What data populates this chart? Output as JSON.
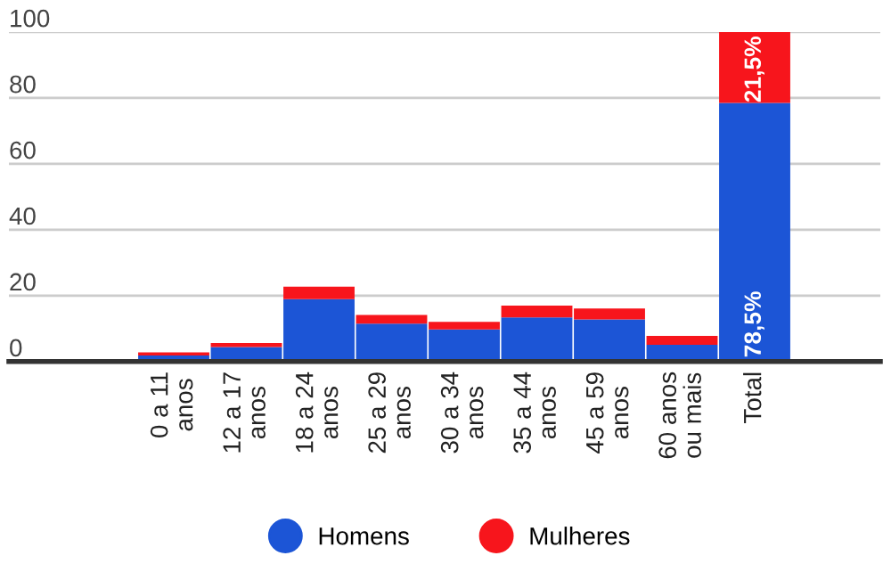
{
  "chart_data": {
    "type": "bar",
    "stacked": true,
    "categories": [
      "0 a 11\nanos",
      "12 a 17\nanos",
      "18 a 24\nanos",
      "25 a 29\nanos",
      "30 a 34\nanos",
      "35 a 44\nanos",
      "45 a 59\nanos",
      "60 anos\nou mais",
      "Total"
    ],
    "series": [
      {
        "name": "Homens",
        "color": "#1c55d6",
        "values": [
          1.8,
          4.4,
          18.9,
          11.5,
          9.7,
          13.4,
          12.8,
          5.1,
          78.5
        ],
        "value_labels": [
          null,
          null,
          null,
          null,
          null,
          null,
          null,
          null,
          "78,5%"
        ]
      },
      {
        "name": "Mulheres",
        "color": "#f7151c",
        "values": [
          1.0,
          1.2,
          3.8,
          2.6,
          2.3,
          3.6,
          3.3,
          2.7,
          21.5
        ],
        "value_labels": [
          null,
          null,
          null,
          null,
          null,
          null,
          null,
          null,
          "21,5%"
        ]
      }
    ],
    "ylim": [
      0,
      100
    ],
    "yticks": [
      0,
      20,
      40,
      60,
      80,
      100
    ],
    "grid": "y",
    "legend": "bottom"
  }
}
